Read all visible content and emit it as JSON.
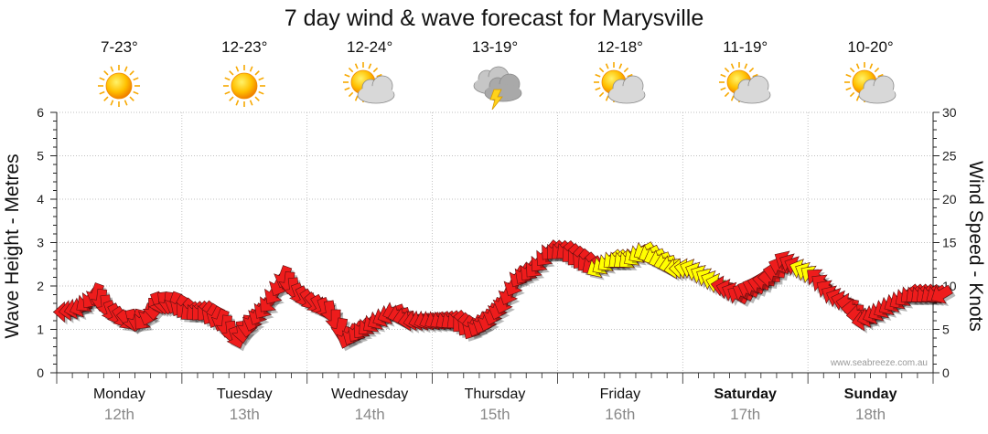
{
  "page": {
    "title": "7 day wind & wave forecast for Marysville"
  },
  "weather": [
    {
      "temp": "7-23°",
      "icon": "sunny-icon"
    },
    {
      "temp": "12-23°",
      "icon": "sunny-icon"
    },
    {
      "temp": "12-24°",
      "icon": "partly-cloudy-icon"
    },
    {
      "temp": "13-19°",
      "icon": "thunderstorm-icon"
    },
    {
      "temp": "12-18°",
      "icon": "partly-cloudy-icon"
    },
    {
      "temp": "11-19°",
      "icon": "partly-cloudy-icon"
    },
    {
      "temp": "10-20°",
      "icon": "partly-cloudy-icon"
    }
  ],
  "credit": "www.seabreeze.com.au",
  "colors": {
    "strong": "#ee1c1c",
    "moderate": "#ffff00",
    "grid": "#aaaaaa",
    "date": "#888888"
  },
  "chart_data": {
    "type": "line",
    "title": "7 day wind & wave forecast for Marysville",
    "ylabel_left": "Wave Height - Metres",
    "ylabel_right": "Wind Speed - Knots",
    "ylim_left": [
      0,
      6
    ],
    "ylim_right": [
      0,
      30
    ],
    "yticks_left": [
      "0",
      "1",
      "2",
      "3",
      "4",
      "5",
      "6"
    ],
    "yticks_right": [
      "0",
      "5",
      "10",
      "15",
      "20",
      "25",
      "30"
    ],
    "grid": true,
    "days": [
      {
        "name": "Monday",
        "date": "12th",
        "bold": false
      },
      {
        "name": "Tuesday",
        "date": "13th",
        "bold": false
      },
      {
        "name": "Wednesday",
        "date": "14th",
        "bold": false
      },
      {
        "name": "Thursday",
        "date": "15th",
        "bold": false
      },
      {
        "name": "Friday",
        "date": "16th",
        "bold": false
      },
      {
        "name": "Saturday",
        "date": "17th",
        "bold": true
      },
      {
        "name": "Sunday",
        "date": "18th",
        "bold": true
      }
    ],
    "series": [
      {
        "x_hours": [
          0,
          3,
          6,
          9,
          12,
          15,
          18,
          21,
          24,
          27,
          30,
          33,
          36,
          39,
          42,
          45,
          48,
          51,
          54,
          57,
          60,
          63,
          66,
          69,
          72,
          75,
          78,
          81,
          84,
          87,
          90,
          93,
          96,
          99,
          102,
          105,
          108,
          111,
          114,
          117,
          120,
          123,
          126,
          129,
          132,
          135,
          138,
          141,
          144,
          147,
          150,
          153,
          156,
          159,
          162,
          165,
          168
        ],
        "wind_knots": [
          7,
          7.5,
          9,
          7,
          6,
          6,
          8,
          8,
          7,
          7,
          6,
          4,
          6,
          8,
          11,
          9,
          8,
          7,
          4,
          5,
          6,
          7,
          6,
          6,
          6,
          6,
          5,
          6,
          8,
          11,
          12,
          14,
          14,
          13,
          12,
          13,
          13,
          14,
          13,
          12,
          12,
          11,
          10,
          9,
          10,
          11,
          13,
          12,
          11,
          9,
          8,
          6,
          7,
          8,
          9,
          9,
          9
        ],
        "direction_deg": [
          270,
          250,
          200,
          160,
          140,
          220,
          160,
          200,
          230,
          220,
          200,
          160,
          200,
          220,
          200,
          160,
          140,
          170,
          200,
          220,
          240,
          250,
          260,
          250,
          240,
          230,
          210,
          200,
          200,
          210,
          220,
          220,
          230,
          220,
          240,
          230,
          230,
          240,
          250,
          260,
          290,
          300,
          280,
          300,
          290,
          270,
          300,
          290,
          310,
          300,
          280,
          260,
          240,
          240,
          230,
          230,
          240
        ],
        "strength": [
          "s",
          "s",
          "s",
          "s",
          "s",
          "s",
          "s",
          "s",
          "s",
          "s",
          "s",
          "s",
          "s",
          "s",
          "s",
          "s",
          "s",
          "s",
          "s",
          "s",
          "s",
          "s",
          "s",
          "s",
          "s",
          "s",
          "s",
          "s",
          "s",
          "s",
          "s",
          "s",
          "s",
          "s",
          "m",
          "m",
          "m",
          "m",
          "m",
          "m",
          "m",
          "m",
          "s",
          "s",
          "s",
          "s",
          "s",
          "m",
          "s",
          "s",
          "s",
          "s",
          "s",
          "s",
          "s",
          "s",
          "s"
        ]
      }
    ]
  }
}
